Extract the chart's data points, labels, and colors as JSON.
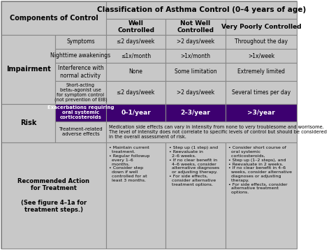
{
  "title": "Classification of Asthma Control (0–4 years of age)",
  "bg_color": "#c8c8c8",
  "dark_purple": "#3d0070",
  "white": "#ffffff",
  "figsize": [
    4.74,
    3.58
  ],
  "dpi": 100,
  "med_text": "Medication side effects can vary in intensity from none to very troublesome and worrisome.  The level of intensity does not correlate to specific levels of control but should be considered in the overall assessment of risk.",
  "bullet1": "• Maintain current\n  treatment.\n• Regular followup\n  every 1–6\n  months.\n• Consider step\n  down if well\n  controlled for at\n  least 3 months.",
  "bullet2": "• Step up (1 step) and\n• Reevaluate in\n  2–6 weeks.\n• If no clear benefit in\n  4–6 weeks, consider\n  alternative diagnoses\n  or adjusting therapy.\n• For side effects,\n  consider alternative\n  treatment options.",
  "bullet3": "• Consider short course of\n  oral systemic\n  corticosteroids,\n• Step up (1–2 steps), and\n• Reevaluate in 2 weeks.\n• If no clear benefit in 4–6\n  weeks, consider alternative\n  diagnoses or adjusting\n  therapy.\n• For side effects, consider\n  alternative treatment\n  options."
}
